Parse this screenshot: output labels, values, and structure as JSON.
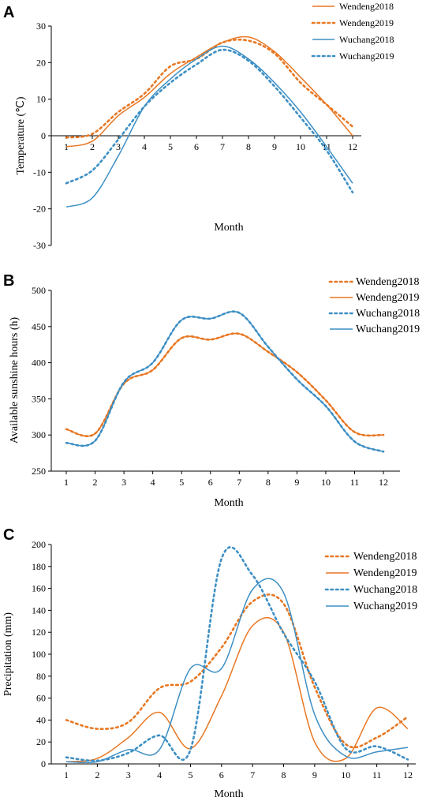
{
  "colors": {
    "orange": "#e87722",
    "blue": "#3d8fc4"
  },
  "chart_data": [
    {
      "panel": "A",
      "type": "line",
      "ylabel": "Temperature (℃)",
      "xlabel": "Month",
      "ylim": [
        -30,
        30
      ],
      "yticks": [
        30,
        20,
        10,
        0,
        -10,
        -20,
        -30
      ],
      "categories": [
        "1",
        "2",
        "3",
        "4",
        "5",
        "6",
        "7",
        "8",
        "9",
        "10",
        "11",
        "12"
      ],
      "series": [
        {
          "name": "Wendeng2018",
          "values": [
            -3.0,
            -1.5,
            5.5,
            10.5,
            17.0,
            21.5,
            25.5,
            27.0,
            23.0,
            16.0,
            8.5,
            0.0
          ]
        },
        {
          "name": "Wendeng2019",
          "values": [
            -0.5,
            0.5,
            6.5,
            11.5,
            19.0,
            21.0,
            25.5,
            26.0,
            22.5,
            14.5,
            8.5,
            2.5
          ]
        },
        {
          "name": "Wuchang2018",
          "values": [
            -19.5,
            -17.0,
            -5.5,
            8.0,
            15.5,
            21.0,
            24.5,
            21.0,
            14.5,
            6.5,
            -3.0,
            -13.0
          ]
        },
        {
          "name": "Wuchang2019",
          "values": [
            -13.0,
            -9.5,
            -1.0,
            8.0,
            14.5,
            19.5,
            23.5,
            20.5,
            13.5,
            5.0,
            -4.0,
            -15.5
          ]
        }
      ]
    },
    {
      "panel": "B",
      "type": "line",
      "ylabel": "Available sunshine hours (h)",
      "xlabel": "Month",
      "ylim": [
        250,
        500
      ],
      "yticks": [
        500,
        450,
        400,
        350,
        300,
        250
      ],
      "categories": [
        "1",
        "2",
        "3",
        "4",
        "5",
        "6",
        "7",
        "8",
        "9",
        "10",
        "11",
        "12"
      ],
      "series": [
        {
          "name": "Wendeng2018",
          "values": [
            308,
            302,
            371,
            390,
            434,
            432,
            440,
            415,
            387,
            348,
            304,
            300
          ]
        },
        {
          "name": "Wendeng2019",
          "values": [
            308,
            302,
            371,
            390,
            434,
            432,
            440,
            415,
            387,
            348,
            304,
            300
          ]
        },
        {
          "name": "Wuchang2018",
          "values": [
            289,
            292,
            373,
            400,
            459,
            461,
            469,
            422,
            377,
            340,
            291,
            277
          ]
        },
        {
          "name": "Wuchang2019",
          "values": [
            289,
            292,
            373,
            400,
            459,
            461,
            469,
            422,
            377,
            340,
            291,
            277
          ]
        }
      ]
    },
    {
      "panel": "C",
      "type": "line",
      "ylabel": "Precipitation (mm)",
      "xlabel": "Month",
      "ylim": [
        0,
        200
      ],
      "yticks": [
        200,
        180,
        160,
        140,
        120,
        100,
        80,
        60,
        40,
        20,
        0
      ],
      "categories": [
        "1",
        "2",
        "3",
        "4",
        "5",
        "6",
        "7",
        "8",
        "9",
        "10",
        "11",
        "12"
      ],
      "series": [
        {
          "name": "Wendeng2018",
          "values": [
            40,
            32,
            38,
            69,
            75,
            106,
            148,
            146,
            70,
            18,
            24,
            43
          ]
        },
        {
          "name": "Wendeng2019",
          "values": [
            2,
            5,
            24,
            47,
            14,
            62,
            126,
            120,
            20,
            5,
            51,
            32
          ]
        },
        {
          "name": "Wuchang2018",
          "values": [
            6,
            3,
            10,
            26,
            13,
            187,
            172,
            119,
            75,
            14,
            16,
            4
          ]
        },
        {
          "name": "Wuchang2019",
          "values": [
            2,
            2,
            13,
            13,
            87,
            87,
            159,
            156,
            45,
            7,
            11,
            15
          ]
        }
      ]
    }
  ]
}
